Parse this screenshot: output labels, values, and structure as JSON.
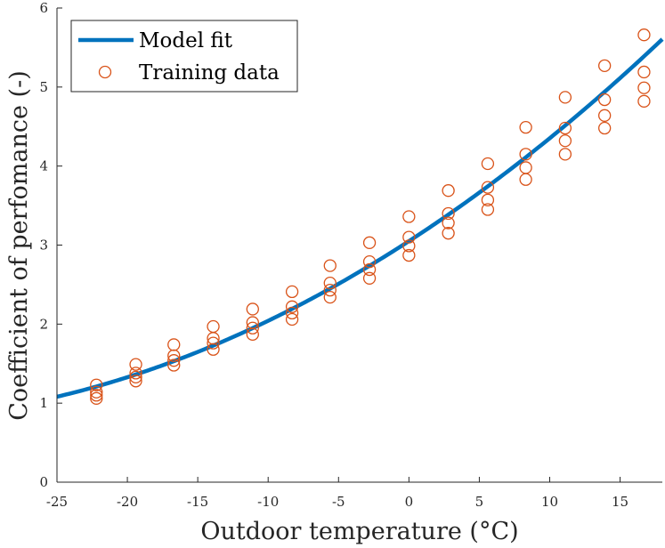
{
  "chart_data": {
    "type": "scatter",
    "title": "",
    "xlabel": "Outdoor temperature (°C)",
    "ylabel": "Coefficient of perfomance (-)",
    "xlim": [
      -25,
      18
    ],
    "ylim": [
      0,
      6
    ],
    "xticks": [
      -25,
      -20,
      -15,
      -10,
      -5,
      0,
      5,
      10,
      15
    ],
    "yticks": [
      0,
      1,
      2,
      3,
      4,
      5,
      6
    ],
    "xtick_labels": [
      "-25",
      "-20",
      "-15",
      "-10",
      "-5",
      "0",
      "5",
      "10",
      "15"
    ],
    "ytick_labels": [
      "0",
      "1",
      "2",
      "3",
      "4",
      "5",
      "6"
    ],
    "grid": false,
    "legend_position": "top-left",
    "series": [
      {
        "name": "Model fit",
        "kind": "line",
        "color": "#0072BD",
        "model_coefficients": {
          "c0": 3.05,
          "c1": 0.1155,
          "c2": 0.00147
        },
        "x_range": [
          -25,
          18
        ]
      },
      {
        "name": "Training data",
        "kind": "scatter",
        "color": "#D95319",
        "points": [
          [
            -22.2,
            1.23
          ],
          [
            -22.2,
            1.14
          ],
          [
            -22.2,
            1.1
          ],
          [
            -22.2,
            1.06
          ],
          [
            -19.4,
            1.49
          ],
          [
            -19.4,
            1.38
          ],
          [
            -19.4,
            1.33
          ],
          [
            -19.4,
            1.28
          ],
          [
            -16.7,
            1.74
          ],
          [
            -16.7,
            1.6
          ],
          [
            -16.7,
            1.54
          ],
          [
            -16.7,
            1.48
          ],
          [
            -13.9,
            1.97
          ],
          [
            -13.9,
            1.82
          ],
          [
            -13.9,
            1.76
          ],
          [
            -13.9,
            1.68
          ],
          [
            -11.1,
            2.19
          ],
          [
            -11.1,
            2.02
          ],
          [
            -11.1,
            1.95
          ],
          [
            -11.1,
            1.87
          ],
          [
            -8.3,
            2.41
          ],
          [
            -8.3,
            2.22
          ],
          [
            -8.3,
            2.14
          ],
          [
            -8.3,
            2.06
          ],
          [
            -5.6,
            2.74
          ],
          [
            -5.6,
            2.52
          ],
          [
            -5.6,
            2.43
          ],
          [
            -5.6,
            2.34
          ],
          [
            -2.8,
            3.03
          ],
          [
            -2.8,
            2.79
          ],
          [
            -2.8,
            2.69
          ],
          [
            -2.8,
            2.58
          ],
          [
            0.0,
            3.36
          ],
          [
            0.0,
            3.1
          ],
          [
            0.0,
            2.99
          ],
          [
            0.0,
            2.87
          ],
          [
            2.8,
            3.69
          ],
          [
            2.8,
            3.4
          ],
          [
            2.8,
            3.28
          ],
          [
            2.8,
            3.15
          ],
          [
            5.6,
            4.03
          ],
          [
            5.6,
            3.73
          ],
          [
            5.6,
            3.57
          ],
          [
            5.6,
            3.45
          ],
          [
            8.3,
            4.49
          ],
          [
            8.3,
            4.15
          ],
          [
            8.3,
            3.98
          ],
          [
            8.3,
            3.83
          ],
          [
            11.1,
            4.87
          ],
          [
            11.1,
            4.48
          ],
          [
            11.1,
            4.32
          ],
          [
            11.1,
            4.15
          ],
          [
            13.9,
            5.27
          ],
          [
            13.9,
            4.84
          ],
          [
            13.9,
            4.64
          ],
          [
            13.9,
            4.48
          ],
          [
            16.7,
            5.66
          ],
          [
            16.7,
            5.19
          ],
          [
            16.7,
            4.99
          ],
          [
            16.7,
            4.82
          ]
        ]
      }
    ]
  }
}
